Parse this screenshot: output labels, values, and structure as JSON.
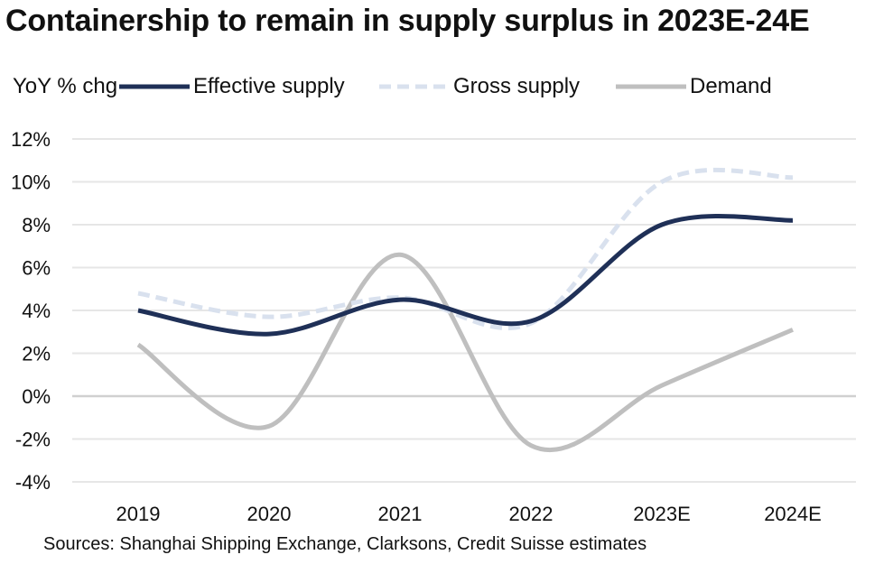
{
  "title": "Containership to remain in supply surplus in 2023E-24E",
  "source": "Sources: Shanghai Shipping Exchange, Clarksons, Credit Suisse estimates",
  "colors": {
    "effective": "#1f3057",
    "gross": "#d9e1ee",
    "demand": "#bfbfbf",
    "grid": "#e6e6e6",
    "zero": "#d0d0d0"
  },
  "chart_data": {
    "type": "line",
    "title": "Containership to remain in supply surplus in 2023E-24E",
    "ylabel": "YoY % chg",
    "xlabel": "",
    "categories": [
      "2019",
      "2020",
      "2021",
      "2022",
      "2023E",
      "2024E"
    ],
    "ylim": [
      -4,
      12
    ],
    "yticks": [
      12,
      10,
      8,
      6,
      4,
      2,
      0,
      -2,
      -4
    ],
    "ytick_labels": [
      "12%",
      "10%",
      "8%",
      "6%",
      "4%",
      "2%",
      "0%",
      "-2%",
      "-4%"
    ],
    "grid": true,
    "legend_position": "top",
    "series": [
      {
        "name": "Effective supply",
        "style": "solid",
        "values": [
          4.0,
          2.9,
          4.5,
          3.5,
          8.0,
          8.2
        ]
      },
      {
        "name": "Gross supply",
        "style": "dashed",
        "values": [
          4.8,
          3.7,
          4.6,
          3.4,
          10.0,
          10.2
        ]
      },
      {
        "name": "Demand",
        "style": "solid",
        "values": [
          2.4,
          -1.4,
          6.6,
          -2.3,
          0.5,
          3.1
        ]
      }
    ]
  }
}
